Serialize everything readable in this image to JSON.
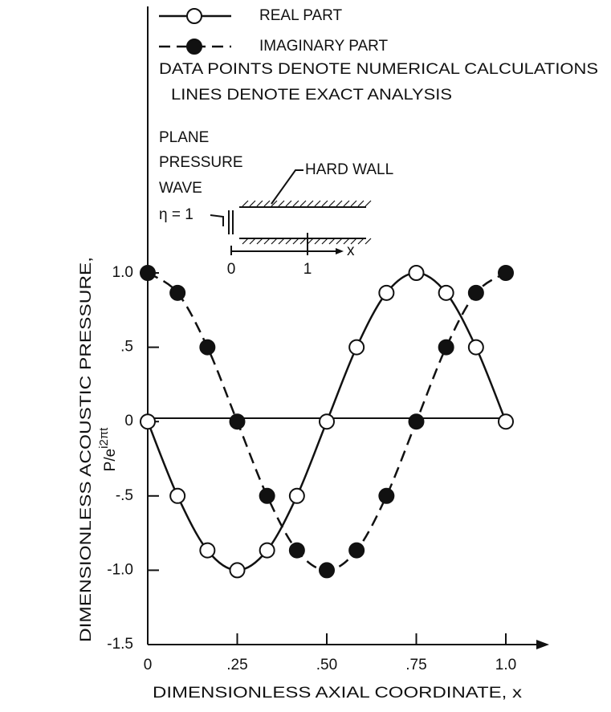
{
  "chart_data": {
    "type": "line",
    "ylabel": "DIMENSIONLESS ACOUSTIC PRESSURE,",
    "ylabel2": {
      "base": "P/e",
      "sup": "i2πt"
    },
    "xlabel": "DIMENSIONLESS AXIAL COORDINATE, x",
    "annotations": [
      "DATA POINTS DENOTE NUMERICAL CALCULATIONS",
      "LINES DENOTE EXACT ANALYSIS"
    ],
    "inset": {
      "wave": [
        "PLANE",
        "PRESSURE",
        "WAVE"
      ],
      "eta": "η = 1",
      "wall": "HARD WALL",
      "ticks": [
        "0",
        "1"
      ],
      "axis": "x"
    },
    "x": [
      0,
      0.0833,
      0.1667,
      0.25,
      0.3333,
      0.4167,
      0.5,
      0.5833,
      0.6667,
      0.75,
      0.8333,
      0.9167,
      1.0
    ],
    "series": [
      {
        "name": "REAL PART",
        "color": "#111111",
        "marker": "open",
        "dashed": false,
        "values": [
          0,
          -0.5,
          -0.866,
          -1,
          -0.866,
          -0.5,
          0,
          0.5,
          0.866,
          1,
          0.866,
          0.5,
          0
        ]
      },
      {
        "name": "IMAGINARY PART",
        "color": "#111111",
        "marker": "filled",
        "dashed": true,
        "values": [
          1,
          0.866,
          0.5,
          0,
          -0.5,
          -0.866,
          -1,
          -0.866,
          -0.5,
          0,
          0.5,
          0.866,
          1
        ]
      }
    ],
    "xlim": [
      0,
      1
    ],
    "ylim": [
      -1.5,
      1.0
    ],
    "xticks": [
      0,
      {
        "value": 0.25,
        "label": ".25"
      },
      {
        "value": 0.5,
        "label": ".50"
      },
      {
        "value": 0.75,
        "label": ".75"
      },
      {
        "value": 1.0,
        "label": "1.0"
      }
    ],
    "yticks": [
      {
        "value": 1.0,
        "label": "1.0"
      },
      {
        "value": 0.5,
        "label": ".5"
      },
      0,
      {
        "value": -0.5,
        "label": "-.5"
      },
      {
        "value": -1.0,
        "label": "-1.0"
      },
      {
        "value": -1.5,
        "label": "-1.5"
      }
    ]
  }
}
